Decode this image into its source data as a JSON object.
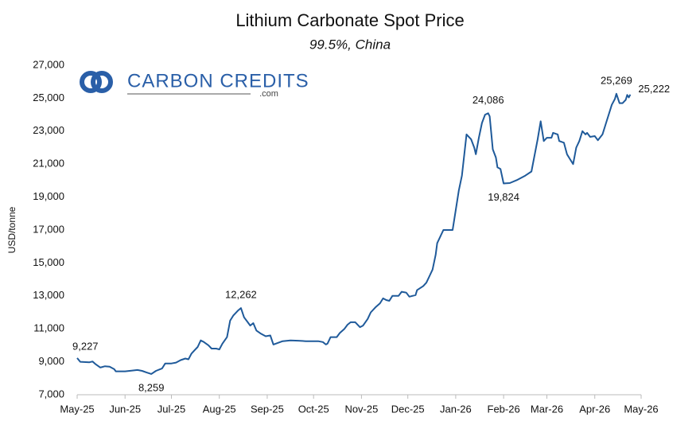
{
  "chart_data": {
    "type": "line",
    "title": "Lithium Carbonate Spot Price",
    "subtitle": "99.5%, China",
    "y_label": "USD/tonne",
    "logo": {
      "name": "CARBON CREDITS",
      "domain": ".com"
    },
    "x": [
      0,
      2,
      8,
      10,
      12,
      15,
      18,
      21,
      24,
      25,
      31,
      34,
      39,
      42,
      45,
      48,
      51,
      55,
      57,
      61,
      64,
      67,
      70,
      72,
      74,
      76,
      78,
      80,
      82,
      85,
      87,
      90,
      92,
      94,
      97,
      99,
      101,
      104,
      106,
      108,
      110,
      112,
      114,
      116,
      119,
      122,
      125,
      127,
      130,
      133,
      138,
      143,
      148,
      156,
      159,
      161,
      162,
      164,
      168,
      170,
      173,
      175,
      177,
      180,
      183,
      185,
      188,
      190,
      193,
      196,
      198,
      200,
      202,
      204,
      208,
      210,
      213,
      215,
      219,
      220,
      224,
      226,
      228,
      230,
      232,
      233,
      235,
      237,
      243,
      245,
      247,
      249,
      252,
      255,
      257,
      258,
      260,
      262,
      264,
      266,
      267,
      269,
      271,
      272,
      274,
      276,
      280,
      285,
      290,
      294,
      298,
      300,
      302,
      304,
      307,
      308,
      311,
      312,
      315,
      317,
      319,
      321,
      323,
      325,
      327,
      329,
      330,
      332,
      335,
      337,
      340,
      342,
      346,
      348,
      349,
      351,
      353,
      355,
      356,
      357,
      358
    ],
    "series": [
      {
        "name": "Lithium Carbonate",
        "color": "#1f5a9a",
        "values": [
          9227,
          9000,
          8970,
          9020,
          8850,
          8650,
          8730,
          8700,
          8550,
          8420,
          8420,
          8450,
          8500,
          8450,
          8350,
          8259,
          8450,
          8600,
          8900,
          8900,
          8950,
          9100,
          9200,
          9150,
          9500,
          9700,
          9900,
          10300,
          10200,
          10000,
          9800,
          9800,
          9750,
          10100,
          10500,
          11500,
          11800,
          12100,
          12262,
          11700,
          11450,
          11200,
          11350,
          10900,
          10700,
          10550,
          10600,
          10050,
          10150,
          10250,
          10300,
          10280,
          10250,
          10250,
          10200,
          10050,
          10100,
          10500,
          10500,
          10750,
          11000,
          11250,
          11400,
          11400,
          11100,
          11200,
          11600,
          12000,
          12300,
          12550,
          12850,
          12750,
          12700,
          13000,
          13000,
          13250,
          13200,
          12950,
          13050,
          13350,
          13600,
          13800,
          14200,
          14600,
          15500,
          16200,
          16600,
          17000,
          17000,
          18200,
          19400,
          20300,
          22800,
          22500,
          22000,
          21600,
          22600,
          23500,
          24000,
          24086,
          23900,
          21900,
          21400,
          20800,
          20700,
          19824,
          19850,
          20050,
          20300,
          20550,
          22500,
          23600,
          22400,
          22600,
          22600,
          22900,
          22800,
          22400,
          22300,
          21600,
          21300,
          21000,
          22000,
          22400,
          23000,
          22800,
          22900,
          22650,
          22700,
          22450,
          22800,
          23400,
          24600,
          24950,
          25269,
          24700,
          24700,
          24900,
          25200,
          25050,
          25222
        ],
        "value_labels": [
          "9,227",
          null,
          null,
          null,
          null,
          null,
          null,
          null,
          null,
          null,
          null,
          null,
          null,
          null,
          null,
          "8,259",
          null,
          null,
          null,
          null,
          null,
          null,
          null,
          null,
          null,
          null,
          null,
          null,
          null,
          null,
          null,
          null,
          null,
          null,
          null,
          null,
          null,
          null,
          "12,262",
          null,
          null,
          null,
          null,
          null,
          null,
          null,
          null,
          null,
          null,
          null,
          null,
          null,
          null,
          null,
          null,
          null,
          null,
          null,
          null,
          null,
          null,
          null,
          null,
          null,
          null,
          null,
          null,
          null,
          null,
          null,
          null,
          null,
          null,
          null,
          null,
          null,
          null,
          null,
          null,
          null,
          null,
          null,
          null,
          null,
          null,
          null,
          null,
          null,
          null,
          null,
          null,
          null,
          null,
          null,
          null,
          null,
          null,
          null,
          null,
          "24,086",
          null,
          null,
          null,
          null,
          null,
          "19,824",
          null,
          null,
          null,
          null,
          null,
          null,
          null,
          null,
          null,
          null,
          null,
          null,
          null,
          null,
          null,
          null,
          null,
          null,
          null,
          null,
          null,
          null,
          null,
          null,
          null,
          null,
          null,
          null,
          "25,269",
          null,
          null,
          null,
          null,
          null,
          "25,222"
        ]
      }
    ],
    "xlim": [
      0,
      365
    ],
    "xticks": [
      {
        "value": 0,
        "label": "May-25"
      },
      {
        "value": 31,
        "label": "Jun-25"
      },
      {
        "value": 61,
        "label": "Jul-25"
      },
      {
        "value": 92,
        "label": "Aug-25"
      },
      {
        "value": 123,
        "label": "Sep-25"
      },
      {
        "value": 153,
        "label": "Oct-25"
      },
      {
        "value": 184,
        "label": "Nov-25"
      },
      {
        "value": 214,
        "label": "Dec-25"
      },
      {
        "value": 245,
        "label": "Jan-26"
      },
      {
        "value": 276,
        "label": "Feb-26"
      },
      {
        "value": 304,
        "label": "Mar-26"
      },
      {
        "value": 335,
        "label": "Apr-26"
      },
      {
        "value": 365,
        "label": "May-26"
      }
    ],
    "ylim": [
      7000,
      27000
    ],
    "yticks": [
      {
        "value": 7000,
        "label": "7,000"
      },
      {
        "value": 9000,
        "label": "9,000"
      },
      {
        "value": 11000,
        "label": "11,000"
      },
      {
        "value": 13000,
        "label": "13,000"
      },
      {
        "value": 15000,
        "label": "15,000"
      },
      {
        "value": 17000,
        "label": "17,000"
      },
      {
        "value": 19000,
        "label": "19,000"
      },
      {
        "value": 21000,
        "label": "21,000"
      },
      {
        "value": 23000,
        "label": "23,000"
      },
      {
        "value": 25000,
        "label": "25,000"
      },
      {
        "value": 27000,
        "label": "27,000"
      }
    ],
    "grid": false
  }
}
